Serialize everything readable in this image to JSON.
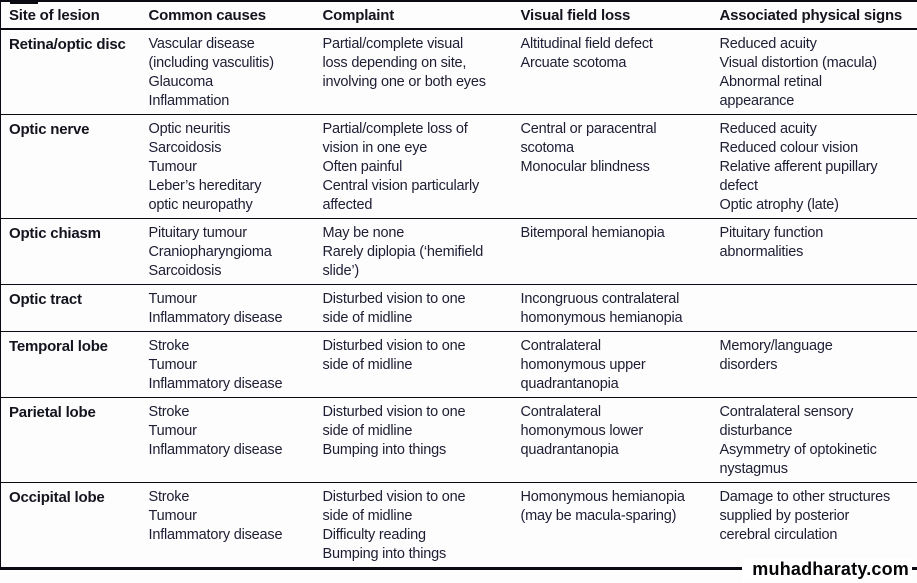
{
  "table": {
    "columns": [
      "Site of lesion",
      "Common causes",
      "Complaint",
      "Visual field loss",
      "Associated physical signs"
    ],
    "rows": [
      {
        "site": "Retina/optic disc",
        "causes": "Vascular disease\n(including vasculitis)\nGlaucoma\nInflammation",
        "complaint": "Partial/complete visual\nloss depending on site,\ninvolving one or both eyes",
        "field_loss": "Altitudinal field defect\nArcuate scotoma",
        "signs": "Reduced acuity\nVisual distortion (macula)\nAbnormal retinal\nappearance"
      },
      {
        "site": "Optic nerve",
        "causes": "Optic neuritis\nSarcoidosis\nTumour\nLeber’s hereditary\noptic neuropathy",
        "complaint": "Partial/complete loss of\nvision in one eye\nOften painful\nCentral vision particularly\naffected",
        "field_loss": "Central or paracentral\nscotoma\nMonocular blindness",
        "signs": "Reduced acuity\nReduced colour vision\nRelative afferent pupillary\ndefect\nOptic atrophy (late)"
      },
      {
        "site": "Optic chiasm",
        "causes": "Pituitary tumour\nCraniopharyngioma\nSarcoidosis",
        "complaint": "May be none\nRarely diplopia (‘hemifield\nslide’)",
        "field_loss": "Bitemporal hemianopia",
        "signs": "Pituitary function\nabnormalities"
      },
      {
        "site": "Optic tract",
        "causes": "Tumour\nInflammatory disease",
        "complaint": "Disturbed vision to one\nside of midline",
        "field_loss": "Incongruous contralateral\nhomonymous hemianopia",
        "signs": ""
      },
      {
        "site": "Temporal lobe",
        "causes": "Stroke\nTumour\nInflammatory disease",
        "complaint": "Disturbed vision to one\nside of midline",
        "field_loss": "Contralateral\nhomonymous upper\nquadrantanopia",
        "signs": "Memory/language\ndisorders"
      },
      {
        "site": "Parietal lobe",
        "causes": "Stroke\nTumour\nInflammatory disease",
        "complaint": "Disturbed vision to one\nside of midline\nBumping into things",
        "field_loss": "Contralateral\nhomonymous lower\nquadrantanopia",
        "signs": "Contralateral sensory\ndisturbance\nAsymmetry of optokinetic\nnystagmus"
      },
      {
        "site": "Occipital lobe",
        "causes": "Stroke\nTumour\nInflammatory disease",
        "complaint": "Disturbed vision to one\nside of midline\nDifficulty reading\nBumping into things",
        "field_loss": "Homonymous hemianopia\n(may be macula-sparing)",
        "signs": "Damage to other structures\nsupplied by posterior\ncerebral circulation"
      }
    ]
  },
  "watermark": "muhadharaty.com"
}
